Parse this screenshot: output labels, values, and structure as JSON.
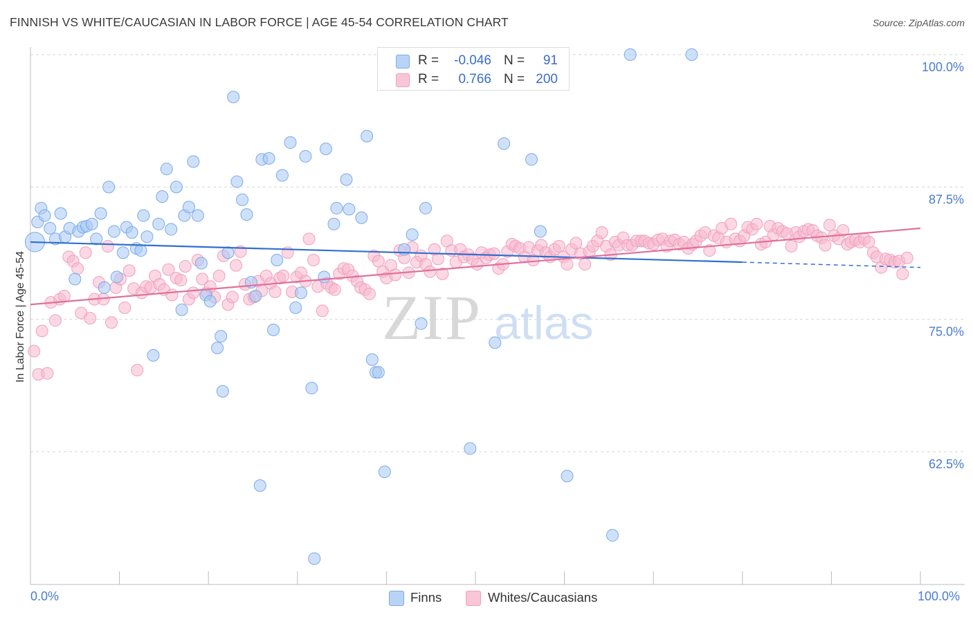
{
  "title": "FINNISH VS WHITE/CAUCASIAN IN LABOR FORCE | AGE 45-54 CORRELATION CHART",
  "source": "Source: ZipAtlas.com",
  "colors": {
    "finns_fill": "rgba(168,200,245,0.55)",
    "finns_stroke": "#7aaae8",
    "finns_line": "#2f6fd0",
    "whites_fill": "rgba(248,184,206,0.55)",
    "whites_stroke": "#f0a0bc",
    "whites_line": "#e0709a",
    "axis_label": "#4a7ccc"
  },
  "legend_top": {
    "rows": [
      {
        "r_label": "R =",
        "r_value": "-0.046",
        "n_label": "N =",
        "n_value": "91"
      },
      {
        "r_label": "R =",
        "r_value": "0.766",
        "n_label": "N =",
        "n_value": "200"
      }
    ]
  },
  "legend_bottom": {
    "finns": "Finns",
    "whites": "Whites/Caucasians"
  },
  "watermark": {
    "zip": "ZIP",
    "atlas": "atlas"
  },
  "chart_data": {
    "type": "scatter",
    "xlabel": "",
    "ylabel": "In Labor Force | Age 45-54",
    "xlim": [
      0,
      100
    ],
    "ylim": [
      50,
      100
    ],
    "x_tick_labels": {
      "left": "0.0%",
      "right": "100.0%"
    },
    "y_ticks": [
      {
        "value": 100,
        "label": "100.0%"
      },
      {
        "value": 87.5,
        "label": "87.5%"
      },
      {
        "value": 75,
        "label": "75.0%"
      },
      {
        "value": 62.5,
        "label": "62.5%"
      }
    ],
    "grid": "horizontal dashed",
    "series": [
      {
        "name": "Finns",
        "trend": {
          "x0": 0,
          "y0": 82.3,
          "x1": 80,
          "y1": 80.4,
          "dashed_to": 100,
          "dashed_y": 79.9
        },
        "points": [
          [
            0.5,
            82.3
          ],
          [
            0.8,
            84.2
          ],
          [
            1.2,
            85.5
          ],
          [
            1.6,
            84.8
          ],
          [
            2.2,
            83.6
          ],
          [
            2.8,
            82.6
          ],
          [
            3.4,
            85.0
          ],
          [
            3.9,
            82.8
          ],
          [
            4.4,
            83.6
          ],
          [
            5.0,
            78.8
          ],
          [
            5.4,
            83.3
          ],
          [
            5.9,
            83.7
          ],
          [
            6.3,
            83.8
          ],
          [
            6.9,
            84.0
          ],
          [
            7.4,
            82.6
          ],
          [
            7.9,
            85.0
          ],
          [
            8.3,
            78.0
          ],
          [
            8.8,
            87.5
          ],
          [
            9.4,
            83.3
          ],
          [
            9.7,
            79.0
          ],
          [
            10.4,
            81.3
          ],
          [
            10.8,
            83.7
          ],
          [
            11.4,
            83.2
          ],
          [
            11.9,
            81.7
          ],
          [
            12.4,
            81.5
          ],
          [
            12.7,
            84.8
          ],
          [
            13.1,
            82.8
          ],
          [
            13.8,
            71.6
          ],
          [
            14.4,
            84.0
          ],
          [
            14.8,
            86.6
          ],
          [
            15.3,
            89.2
          ],
          [
            15.8,
            83.5
          ],
          [
            16.4,
            87.5
          ],
          [
            17.0,
            75.9
          ],
          [
            17.3,
            84.8
          ],
          [
            17.8,
            85.6
          ],
          [
            18.3,
            89.9
          ],
          [
            18.8,
            84.8
          ],
          [
            19.2,
            80.3
          ],
          [
            19.7,
            77.3
          ],
          [
            20.2,
            76.7
          ],
          [
            21.0,
            72.3
          ],
          [
            21.4,
            73.4
          ],
          [
            21.6,
            68.2
          ],
          [
            22.2,
            81.3
          ],
          [
            22.8,
            96.0
          ],
          [
            23.2,
            88.0
          ],
          [
            23.8,
            86.3
          ],
          [
            24.3,
            84.9
          ],
          [
            24.8,
            78.5
          ],
          [
            25.3,
            77.2
          ],
          [
            25.8,
            59.3
          ],
          [
            26.0,
            90.1
          ],
          [
            26.8,
            90.2
          ],
          [
            27.3,
            74.0
          ],
          [
            27.7,
            80.6
          ],
          [
            28.3,
            88.6
          ],
          [
            29.2,
            91.7
          ],
          [
            29.8,
            76.1
          ],
          [
            30.4,
            77.5
          ],
          [
            30.9,
            90.4
          ],
          [
            31.6,
            68.5
          ],
          [
            31.9,
            52.4
          ],
          [
            33.0,
            79.0
          ],
          [
            33.2,
            91.1
          ],
          [
            34.1,
            84.0
          ],
          [
            34.4,
            85.5
          ],
          [
            35.5,
            88.2
          ],
          [
            35.8,
            85.4
          ],
          [
            37.2,
            84.6
          ],
          [
            37.8,
            92.3
          ],
          [
            38.4,
            71.2
          ],
          [
            38.8,
            70.0
          ],
          [
            39.1,
            70.0
          ],
          [
            39.8,
            60.6
          ],
          [
            40.2,
            100.0
          ],
          [
            42.0,
            81.6
          ],
          [
            41.3,
            100.0
          ],
          [
            42.9,
            83.0
          ],
          [
            43.9,
            74.6
          ],
          [
            44.4,
            85.5
          ],
          [
            44.9,
            100.0
          ],
          [
            49.4,
            62.8
          ],
          [
            52.2,
            72.8
          ],
          [
            53.2,
            91.6
          ],
          [
            56.3,
            90.1
          ],
          [
            57.3,
            83.3
          ],
          [
            60.3,
            60.2
          ],
          [
            65.4,
            54.6
          ],
          [
            67.4,
            100.0
          ],
          [
            74.3,
            100.0
          ]
        ]
      },
      {
        "name": "Whites/Caucasians",
        "trend": {
          "x0": 0,
          "y0": 76.4,
          "x1": 100,
          "y1": 83.6
        },
        "points": [
          [
            0.4,
            72.0
          ],
          [
            0.9,
            69.8
          ],
          [
            1.3,
            73.9
          ],
          [
            1.9,
            69.9
          ],
          [
            2.3,
            76.6
          ],
          [
            2.8,
            74.9
          ],
          [
            3.3,
            76.9
          ],
          [
            3.8,
            77.2
          ],
          [
            4.3,
            80.9
          ],
          [
            4.8,
            80.5
          ],
          [
            5.3,
            79.8
          ],
          [
            5.7,
            75.6
          ],
          [
            6.2,
            81.3
          ],
          [
            6.7,
            75.1
          ],
          [
            7.2,
            76.9
          ],
          [
            7.7,
            78.5
          ],
          [
            8.2,
            76.9
          ],
          [
            8.7,
            81.9
          ],
          [
            9.1,
            74.7
          ],
          [
            9.6,
            78.0
          ],
          [
            10.1,
            78.8
          ],
          [
            10.6,
            76.1
          ],
          [
            11.1,
            79.6
          ],
          [
            11.6,
            77.9
          ],
          [
            12.0,
            70.2
          ],
          [
            12.5,
            77.5
          ],
          [
            13.0,
            78.1
          ],
          [
            13.5,
            78.0
          ],
          [
            14.0,
            79.1
          ],
          [
            14.5,
            78.3
          ],
          [
            15.0,
            77.8
          ],
          [
            15.5,
            79.7
          ],
          [
            15.9,
            77.3
          ],
          [
            16.4,
            78.9
          ],
          [
            16.9,
            78.7
          ],
          [
            17.4,
            80.0
          ],
          [
            17.8,
            76.9
          ],
          [
            18.3,
            77.5
          ],
          [
            18.8,
            80.6
          ],
          [
            19.3,
            78.8
          ],
          [
            19.8,
            77.5
          ],
          [
            20.2,
            78.1
          ],
          [
            20.7,
            77.1
          ],
          [
            21.2,
            79.1
          ],
          [
            21.7,
            81.0
          ],
          [
            22.2,
            76.4
          ],
          [
            22.7,
            77.1
          ],
          [
            23.1,
            80.1
          ],
          [
            23.6,
            81.4
          ],
          [
            24.1,
            78.3
          ],
          [
            24.6,
            76.9
          ],
          [
            25.1,
            77.1
          ],
          [
            25.6,
            78.6
          ],
          [
            26.0,
            77.7
          ],
          [
            26.5,
            79.1
          ],
          [
            27.0,
            78.4
          ],
          [
            27.5,
            77.6
          ],
          [
            28.0,
            78.9
          ],
          [
            28.4,
            79.1
          ],
          [
            28.9,
            81.3
          ],
          [
            29.4,
            77.6
          ],
          [
            29.9,
            79.0
          ],
          [
            30.4,
            79.4
          ],
          [
            30.9,
            78.6
          ],
          [
            31.3,
            82.6
          ],
          [
            31.8,
            80.6
          ],
          [
            32.3,
            78.1
          ],
          [
            32.8,
            75.8
          ],
          [
            33.3,
            78.4
          ],
          [
            33.8,
            78.0
          ],
          [
            34.2,
            77.8
          ],
          [
            34.7,
            79.3
          ],
          [
            35.2,
            79.8
          ],
          [
            35.7,
            79.7
          ],
          [
            36.2,
            79.1
          ],
          [
            36.7,
            78.6
          ],
          [
            37.1,
            78.0
          ],
          [
            37.6,
            77.8
          ],
          [
            38.1,
            77.4
          ],
          [
            38.6,
            81.0
          ],
          [
            39.1,
            80.5
          ],
          [
            39.6,
            79.5
          ],
          [
            40.0,
            78.9
          ],
          [
            40.5,
            80.1
          ],
          [
            41.0,
            79.2
          ],
          [
            41.5,
            81.5
          ],
          [
            42.0,
            80.8
          ],
          [
            42.5,
            79.4
          ],
          [
            42.9,
            81.8
          ],
          [
            43.4,
            80.4
          ],
          [
            43.9,
            81.0
          ],
          [
            44.4,
            80.2
          ],
          [
            44.9,
            79.5
          ],
          [
            45.4,
            81.6
          ],
          [
            45.8,
            80.7
          ],
          [
            46.3,
            79.3
          ],
          [
            46.8,
            82.4
          ],
          [
            47.3,
            81.5
          ],
          [
            47.8,
            80.4
          ],
          [
            48.3,
            81.6
          ],
          [
            48.7,
            80.9
          ],
          [
            49.2,
            81.1
          ],
          [
            49.7,
            80.7
          ],
          [
            50.2,
            80.2
          ],
          [
            50.7,
            81.3
          ],
          [
            51.2,
            80.8
          ],
          [
            51.6,
            81.1
          ],
          [
            52.1,
            81.2
          ],
          [
            52.6,
            79.8
          ],
          [
            53.1,
            80.2
          ],
          [
            53.6,
            81.4
          ],
          [
            54.1,
            82.1
          ],
          [
            54.5,
            81.9
          ],
          [
            55.0,
            81.7
          ],
          [
            55.5,
            80.9
          ],
          [
            56.0,
            81.8
          ],
          [
            56.5,
            80.6
          ],
          [
            57.0,
            81.5
          ],
          [
            57.4,
            82.0
          ],
          [
            57.9,
            81.3
          ],
          [
            58.4,
            80.9
          ],
          [
            58.9,
            81.6
          ],
          [
            59.4,
            81.9
          ],
          [
            59.9,
            80.9
          ],
          [
            60.3,
            80.2
          ],
          [
            60.8,
            81.6
          ],
          [
            61.3,
            82.2
          ],
          [
            61.8,
            81.2
          ],
          [
            62.3,
            80.2
          ],
          [
            62.8,
            81.4
          ],
          [
            63.2,
            81.9
          ],
          [
            63.7,
            82.4
          ],
          [
            64.2,
            83.2
          ],
          [
            64.7,
            81.9
          ],
          [
            65.2,
            81.1
          ],
          [
            65.7,
            82.3
          ],
          [
            66.1,
            82.0
          ],
          [
            66.6,
            82.7
          ],
          [
            67.1,
            82.0
          ],
          [
            67.6,
            82.0
          ],
          [
            68.1,
            82.4
          ],
          [
            68.6,
            82.4
          ],
          [
            69.0,
            82.4
          ],
          [
            69.5,
            82.2
          ],
          [
            70.0,
            82.1
          ],
          [
            70.5,
            82.5
          ],
          [
            71.0,
            82.6
          ],
          [
            71.5,
            81.9
          ],
          [
            71.9,
            82.4
          ],
          [
            72.4,
            82.5
          ],
          [
            72.9,
            82.1
          ],
          [
            73.4,
            82.3
          ],
          [
            73.9,
            81.7
          ],
          [
            74.4,
            82.1
          ],
          [
            74.8,
            82.4
          ],
          [
            75.3,
            82.9
          ],
          [
            75.8,
            83.2
          ],
          [
            76.3,
            81.5
          ],
          [
            76.8,
            82.9
          ],
          [
            77.3,
            82.7
          ],
          [
            77.7,
            83.6
          ],
          [
            78.2,
            82.3
          ],
          [
            78.7,
            84.0
          ],
          [
            79.2,
            82.6
          ],
          [
            79.7,
            82.4
          ],
          [
            80.2,
            82.9
          ],
          [
            80.6,
            83.7
          ],
          [
            81.1,
            83.5
          ],
          [
            81.6,
            84.0
          ],
          [
            82.1,
            82.1
          ],
          [
            82.6,
            82.3
          ],
          [
            83.1,
            83.8
          ],
          [
            83.5,
            83.0
          ],
          [
            84.0,
            83.6
          ],
          [
            84.5,
            83.3
          ],
          [
            85.0,
            83.1
          ],
          [
            85.5,
            81.9
          ],
          [
            86.0,
            83.2
          ],
          [
            86.4,
            82.8
          ],
          [
            86.9,
            83.3
          ],
          [
            87.4,
            83.5
          ],
          [
            87.9,
            83.4
          ],
          [
            88.4,
            82.9
          ],
          [
            88.9,
            82.7
          ],
          [
            89.3,
            82.0
          ],
          [
            89.8,
            83.9
          ],
          [
            90.3,
            82.9
          ],
          [
            90.8,
            82.6
          ],
          [
            91.3,
            83.4
          ],
          [
            91.8,
            82.1
          ],
          [
            92.2,
            82.3
          ],
          [
            92.7,
            82.5
          ],
          [
            93.2,
            82.3
          ],
          [
            93.7,
            82.6
          ],
          [
            94.2,
            82.3
          ],
          [
            94.7,
            81.3
          ],
          [
            95.1,
            80.9
          ],
          [
            95.6,
            79.9
          ],
          [
            96.1,
            80.7
          ],
          [
            96.6,
            80.6
          ],
          [
            97.1,
            80.4
          ],
          [
            97.6,
            80.5
          ],
          [
            98.0,
            79.3
          ],
          [
            98.5,
            80.8
          ]
        ]
      }
    ]
  }
}
